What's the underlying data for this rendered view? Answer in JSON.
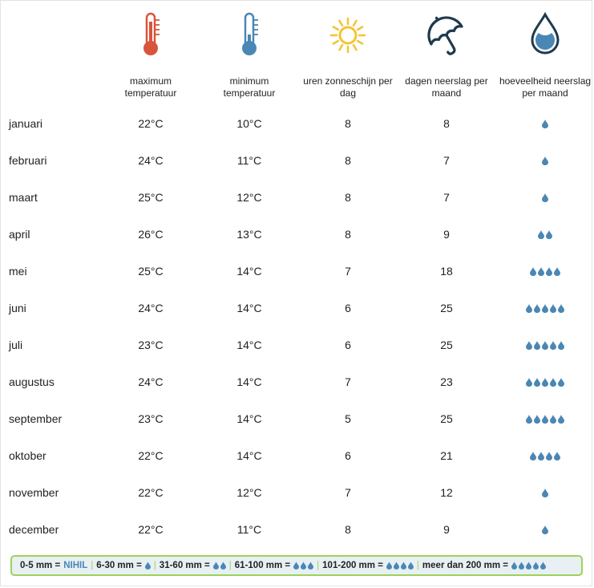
{
  "headers": {
    "max_temp": "maximum temperatuur",
    "min_temp": "minimum temperatuur",
    "sun": "uren zonneschijn per dag",
    "rain_days": "dagen neerslag per maand",
    "rain_amount": "hoeveelheid neerslag per maand"
  },
  "icons": {
    "max_temp": "thermometer-high-icon",
    "min_temp": "thermometer-low-icon",
    "sun": "sun-icon",
    "rain_days": "umbrella-icon",
    "rain_amount": "water-drop-icon"
  },
  "colors": {
    "drop": "#4a87b5",
    "thermo_red": "#d9543c",
    "thermo_blue": "#4a87b5",
    "sun": "#f4c430",
    "umbrella": "#1f3a4d",
    "legend_border": "#9dd25a",
    "legend_bg": "#e8f0f4"
  },
  "months": [
    {
      "name": "januari",
      "max": "22°C",
      "min": "10°C",
      "sun": "8",
      "rain_days": "8",
      "drops": 1
    },
    {
      "name": "februari",
      "max": "24°C",
      "min": "11°C",
      "sun": "8",
      "rain_days": "7",
      "drops": 1
    },
    {
      "name": "maart",
      "max": "25°C",
      "min": "12°C",
      "sun": "8",
      "rain_days": "7",
      "drops": 1
    },
    {
      "name": "april",
      "max": "26°C",
      "min": "13°C",
      "sun": "8",
      "rain_days": "9",
      "drops": 2
    },
    {
      "name": "mei",
      "max": "25°C",
      "min": "14°C",
      "sun": "7",
      "rain_days": "18",
      "drops": 4
    },
    {
      "name": "juni",
      "max": "24°C",
      "min": "14°C",
      "sun": "6",
      "rain_days": "25",
      "drops": 5
    },
    {
      "name": "juli",
      "max": "23°C",
      "min": "14°C",
      "sun": "6",
      "rain_days": "25",
      "drops": 5
    },
    {
      "name": "augustus",
      "max": "24°C",
      "min": "14°C",
      "sun": "7",
      "rain_days": "23",
      "drops": 5
    },
    {
      "name": "september",
      "max": "23°C",
      "min": "14°C",
      "sun": "5",
      "rain_days": "25",
      "drops": 5
    },
    {
      "name": "oktober",
      "max": "22°C",
      "min": "14°C",
      "sun": "6",
      "rain_days": "21",
      "drops": 4
    },
    {
      "name": "november",
      "max": "22°C",
      "min": "12°C",
      "sun": "7",
      "rain_days": "12",
      "drops": 1
    },
    {
      "name": "december",
      "max": "22°C",
      "min": "11°C",
      "sun": "8",
      "rain_days": "9",
      "drops": 1
    }
  ],
  "legend": {
    "items": [
      {
        "range": "0-5 mm =",
        "label": "NIHIL",
        "drops": 0
      },
      {
        "range": "6-30 mm =",
        "label": "",
        "drops": 1
      },
      {
        "range": "31-60 mm =",
        "label": "",
        "drops": 2
      },
      {
        "range": "61-100 mm =",
        "label": "",
        "drops": 3
      },
      {
        "range": "101-200 mm =",
        "label": "",
        "drops": 4
      },
      {
        "range": "meer dan 200 mm =",
        "label": "",
        "drops": 5
      }
    ],
    "separator": "|"
  }
}
